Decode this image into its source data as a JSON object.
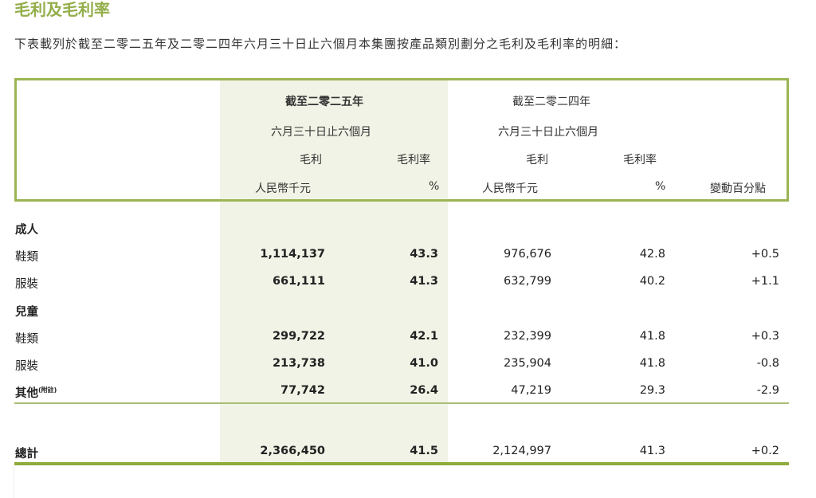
{
  "title": "毛利及毛利率",
  "intro": "下表載列於截至二零二五年及二零二四年六月三十日止六個月本集團按產品類別劃分之毛利及毛利率的明細：",
  "header": {
    "period_2025_line1": "截至二零二五年",
    "period_2025_line2": "六月三十日止六個月",
    "period_2024_line1": "截至二零二四年",
    "period_2024_line2": "六月三十日止六個月",
    "gross_profit": "毛利",
    "gross_margin": "毛利率",
    "unit_rmb": "人民幣千元",
    "unit_pct": "%",
    "change": "變動百分點"
  },
  "sections": [
    {
      "label": "成人"
    },
    {
      "label": "兒童"
    }
  ],
  "rows": [
    {
      "label": "鞋類",
      "gp_2025": "1,114,137",
      "gm_2025": "43.3",
      "gp_2024": "976,676",
      "gm_2024": "42.8",
      "change": "+0.5"
    },
    {
      "label": "服裝",
      "gp_2025": "661,111",
      "gm_2025": "41.3",
      "gp_2024": "632,799",
      "gm_2024": "40.2",
      "change": "+1.1"
    },
    {
      "label": "鞋類",
      "gp_2025": "299,722",
      "gm_2025": "42.1",
      "gp_2024": "232,399",
      "gm_2024": "41.8",
      "change": "+0.3"
    },
    {
      "label": "服裝",
      "gp_2025": "213,738",
      "gm_2025": "41.0",
      "gp_2024": "235,904",
      "gm_2024": "41.8",
      "change": "-0.8"
    },
    {
      "label": "其他",
      "note": "(附註)",
      "gp_2025": "77,742",
      "gm_2025": "26.4",
      "gp_2024": "47,219",
      "gm_2024": "29.3",
      "change": "-2.9"
    }
  ],
  "total": {
    "label": "總計",
    "gp_2025": "2,366,450",
    "gm_2025": "41.5",
    "gp_2024": "2,124,997",
    "gm_2024": "41.3",
    "change": "+0.2"
  },
  "colors": {
    "accent": "#93ae4a",
    "highlight": "#f1f3e6",
    "border": "#9cb554"
  }
}
